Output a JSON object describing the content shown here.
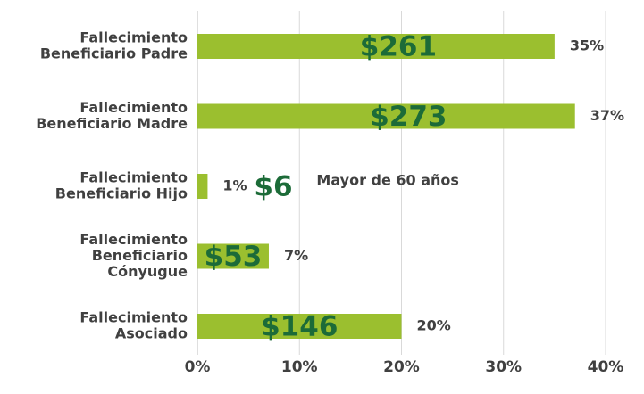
{
  "chart_data": {
    "type": "barh",
    "categories": [
      [
        "Fallecimiento",
        "Beneficiario Padre"
      ],
      [
        "Fallecimiento",
        "Beneficiario Madre"
      ],
      [
        "Fallecimiento",
        "Beneficiario Hijo"
      ],
      [
        "Fallecimiento",
        "Beneficiario",
        "Cónyugue"
      ],
      [
        "Fallecimiento",
        "Asociado"
      ]
    ],
    "values": [
      35,
      37,
      1,
      7,
      20
    ],
    "value_labels": [
      "35%",
      "37%",
      "1%",
      "7%",
      "20%"
    ],
    "amount_labels": [
      "$261",
      "$273",
      "$6",
      "$53",
      "$146"
    ],
    "annotation": "Mayor de 60 años",
    "color": "#9bbf2f",
    "xlim": [
      0,
      40
    ],
    "xticks": [
      {
        "value": 0,
        "label": "0%"
      },
      {
        "value": 10,
        "label": "10%"
      },
      {
        "value": 20,
        "label": "20%"
      },
      {
        "value": 30,
        "label": "30%"
      },
      {
        "value": 40,
        "label": "40%"
      }
    ],
    "grid": true
  }
}
